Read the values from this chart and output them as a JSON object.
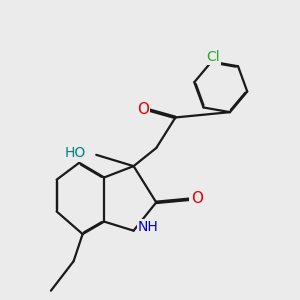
{
  "background_color": "#ebebeb",
  "bond_color": "#1a1a1a",
  "bond_width": 1.6,
  "atom_colors": {
    "O": "#e00000",
    "N": "#0000cc",
    "Cl": "#22aa22",
    "HO_color": "#008080",
    "NH_color": "#0000cc"
  },
  "figsize": [
    3.0,
    3.0
  ],
  "dpi": 100
}
